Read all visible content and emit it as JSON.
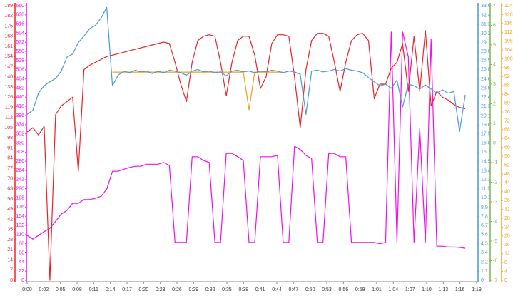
{
  "chart_data": {
    "type": "line",
    "x": [
      0,
      1,
      2,
      3,
      4,
      5,
      6,
      7,
      8,
      9,
      10,
      11,
      12,
      13,
      14,
      15,
      16,
      17,
      18,
      19,
      20,
      21,
      22,
      23,
      24,
      25,
      26,
      27,
      28,
      29,
      30,
      31,
      32,
      33,
      34,
      35,
      36,
      37,
      38,
      39,
      40,
      41,
      42,
      43,
      44,
      45,
      46,
      47,
      48,
      49,
      50,
      51,
      52,
      53,
      54,
      55,
      56,
      57,
      58,
      59,
      60,
      61,
      62,
      63,
      64,
      65,
      66,
      67,
      68,
      69,
      70,
      71,
      72,
      73,
      74,
      75,
      76,
      77
    ],
    "xlim": [
      0,
      79
    ],
    "xticks": [
      {
        "value": 0,
        "label": "0:00"
      },
      {
        "value": 2.93,
        "label": "0:02"
      },
      {
        "value": 5.85,
        "label": "0:05"
      },
      {
        "value": 8.78,
        "label": "0:08"
      },
      {
        "value": 11.7,
        "label": "0:11"
      },
      {
        "value": 14.63,
        "label": "0:14"
      },
      {
        "value": 17.56,
        "label": "0:17"
      },
      {
        "value": 20.48,
        "label": "0:20"
      },
      {
        "value": 23.41,
        "label": "0:23"
      },
      {
        "value": 26.33,
        "label": "0:26"
      },
      {
        "value": 29.26,
        "label": "0:29"
      },
      {
        "value": 32.19,
        "label": "0:32"
      },
      {
        "value": 35.11,
        "label": "0:35"
      },
      {
        "value": 38.04,
        "label": "0:38"
      },
      {
        "value": 40.96,
        "label": "0:41"
      },
      {
        "value": 43.89,
        "label": "0:44"
      },
      {
        "value": 46.81,
        "label": "0:47"
      },
      {
        "value": 49.74,
        "label": "0:50"
      },
      {
        "value": 52.67,
        "label": "0:53"
      },
      {
        "value": 55.59,
        "label": "0:56"
      },
      {
        "value": 58.52,
        "label": "0:59"
      },
      {
        "value": 61.44,
        "label": "1:01"
      },
      {
        "value": 64.37,
        "label": "1:04"
      },
      {
        "value": 67.3,
        "label": "1:07"
      },
      {
        "value": 70.22,
        "label": "1:10"
      },
      {
        "value": 73.15,
        "label": "1:13"
      },
      {
        "value": 76.07,
        "label": "1:16"
      },
      {
        "value": 79,
        "label": "1:19"
      }
    ],
    "axes": [
      {
        "side": "left",
        "color": "#e8232a",
        "lim": [
          0,
          189
        ],
        "ticks": [
          0,
          7,
          14,
          21,
          28,
          35,
          42,
          49,
          56,
          63,
          70,
          77,
          84,
          91,
          98,
          105,
          112,
          119,
          126,
          133,
          140,
          147,
          154,
          161,
          168,
          175,
          182,
          189
        ]
      },
      {
        "side": "left",
        "color": "#f20cf2",
        "lim": [
          0,
          660
        ],
        "ticks": [
          0,
          22,
          44,
          66,
          88,
          110,
          132,
          154,
          176,
          198,
          220,
          242,
          264,
          286,
          308,
          330,
          352,
          374,
          396,
          418,
          440,
          462,
          484,
          506,
          528,
          550,
          572,
          594,
          616,
          638,
          660
        ]
      },
      {
        "side": "right",
        "color": "#4a98d8",
        "lim": [
          0,
          33.6
        ],
        "ticks": [
          0,
          1.1,
          2.2,
          3.4,
          4.5,
          5.6,
          6.7,
          7.8,
          8.9,
          10.1,
          11.2,
          12.3,
          13.4,
          14.5,
          15.7,
          16.8,
          17.9,
          {
            "value": 19,
            "label": "19.0"
          },
          20.1,
          21.3,
          22.4,
          23.5,
          24.6,
          25.8,
          26.9,
          {
            "value": 28,
            "label": "28.0"
          },
          29.1,
          30.2,
          31.3,
          32.4,
          33.6
        ]
      },
      {
        "side": "right",
        "color": "#7ab648",
        "lim": [
          -7,
          7
        ],
        "ticks": [
          -7,
          -6,
          -5,
          -4,
          -3,
          -2,
          -1,
          0,
          1,
          2,
          3,
          4,
          5,
          6,
          7
        ]
      },
      {
        "side": "right",
        "color": "#f0a020",
        "lim": [
          0,
          124
        ],
        "ticks": [
          0,
          4,
          8,
          12,
          16,
          20,
          24,
          28,
          32,
          36,
          40,
          44,
          48,
          52,
          56,
          60,
          64,
          68,
          72,
          76,
          80,
          84,
          88,
          92,
          96,
          100,
          104,
          108,
          112,
          116,
          120,
          124
        ]
      }
    ],
    "series": [
      {
        "color": "#f20cf2",
        "axis": 1,
        "values": [
          108,
          99,
          108,
          117,
          125,
          142,
          159,
          168,
          185,
          185,
          194,
          194,
          197,
          202,
          219,
          262,
          262,
          267,
          271,
          274,
          274,
          279,
          279,
          279,
          283,
          276,
          91,
          91,
          91,
          297,
          297,
          288,
          283,
          91,
          91,
          305,
          305,
          297,
          288,
          91,
          91,
          297,
          297,
          297,
          300,
          91,
          91,
          322,
          314,
          300,
          293,
          91,
          91,
          305,
          305,
          297,
          297,
          91,
          91,
          91,
          91,
          91,
          88,
          91,
          597,
          91,
          597,
          537,
          91,
          365,
          91,
          579,
          82,
          82,
          80,
          80,
          79,
          77
        ]
      },
      {
        "color": "#e8232a",
        "axis": 0,
        "values": [
          102,
          105,
          100,
          106,
          0,
          114,
          120,
          123,
          126,
          75,
          145,
          148,
          150,
          152,
          154,
          155,
          156,
          157,
          158,
          159,
          160,
          161,
          162,
          163,
          164,
          163,
          150,
          135,
          123,
          150,
          165,
          168,
          169,
          168,
          150,
          127,
          150,
          165,
          168,
          168,
          155,
          132,
          140,
          163,
          169,
          169,
          168,
          140,
          105,
          145,
          165,
          170,
          170,
          168,
          150,
          130,
          150,
          165,
          169,
          170,
          165,
          125,
          135,
          135,
          146,
          150,
          163,
          130,
          168,
          130,
          172,
          120,
          130,
          126,
          124,
          121,
          119,
          118
        ]
      },
      {
        "color": "#f0a020",
        "axis": 4,
        "values": [
          null,
          null,
          null,
          null,
          null,
          null,
          null,
          null,
          null,
          null,
          null,
          null,
          null,
          null,
          null,
          94,
          94,
          94,
          94,
          94,
          94,
          94,
          94,
          94,
          94,
          94,
          94,
          94,
          94,
          94,
          94,
          94,
          94,
          94,
          94,
          94,
          94,
          94,
          94,
          77,
          94,
          94,
          94,
          94,
          94,
          94,
          null,
          null,
          null,
          null,
          null,
          null,
          null,
          null,
          null,
          null,
          null,
          null,
          null,
          null,
          null,
          null,
          null,
          null,
          null,
          null,
          null,
          null,
          null,
          null,
          null,
          null,
          null,
          null,
          null,
          null,
          null,
          null
        ]
      },
      {
        "color": "#4a98d8",
        "axis": 2,
        "values": [
          20.3,
          20.8,
          22.9,
          23.8,
          24.3,
          24.7,
          25.6,
          27.3,
          27.7,
          29.1,
          29.9,
          30.8,
          31.2,
          32.1,
          33.4,
          23.8,
          25.1,
          25.6,
          25.4,
          25.7,
          25.5,
          25.6,
          25.3,
          25.6,
          25.4,
          25.7,
          25.6,
          25.4,
          25.1,
          25.6,
          25.8,
          25.5,
          25.6,
          25.4,
          25.5,
          25.0,
          25.6,
          25.7,
          25.5,
          25.6,
          25.4,
          25.6,
          25.5,
          25.7,
          25.6,
          25.4,
          25.6,
          25.5,
          25.2,
          20.3,
          25.6,
          25.7,
          25.5,
          25.6,
          25.8,
          25.6,
          25.9,
          25.7,
          25.6,
          25.4,
          24.8,
          24.3,
          23.8,
          24.0,
          23.5,
          24.5,
          21.2,
          24.0,
          23.8,
          23.4,
          23.9,
          23.4,
          22.9,
          23.3,
          22.9,
          23.1,
          18.2,
          22.7
        ]
      }
    ]
  }
}
